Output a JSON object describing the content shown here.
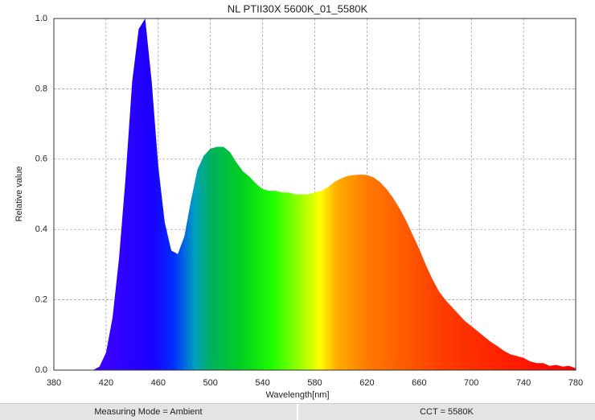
{
  "chart_data": {
    "type": "area",
    "title": "NL PTII30X 5600K_01_5580K",
    "x_label": "Wavelength[nm]",
    "y_label": "Relative value",
    "x": [
      380,
      385,
      390,
      395,
      400,
      405,
      410,
      415,
      420,
      425,
      430,
      435,
      440,
      445,
      450,
      455,
      460,
      465,
      470,
      475,
      480,
      485,
      490,
      495,
      500,
      505,
      510,
      515,
      520,
      525,
      530,
      535,
      540,
      545,
      550,
      555,
      560,
      565,
      570,
      575,
      580,
      585,
      590,
      595,
      600,
      605,
      610,
      615,
      620,
      625,
      630,
      635,
      640,
      645,
      650,
      655,
      660,
      665,
      670,
      675,
      680,
      685,
      690,
      695,
      700,
      705,
      710,
      715,
      720,
      725,
      730,
      735,
      740,
      745,
      750,
      755,
      760,
      765,
      770,
      775,
      780
    ],
    "values": [
      0,
      0,
      0,
      0,
      0,
      0,
      0,
      0.01,
      0.05,
      0.15,
      0.32,
      0.55,
      0.82,
      0.97,
      1.0,
      0.82,
      0.58,
      0.42,
      0.34,
      0.33,
      0.38,
      0.48,
      0.57,
      0.61,
      0.63,
      0.635,
      0.635,
      0.62,
      0.59,
      0.565,
      0.55,
      0.53,
      0.515,
      0.51,
      0.51,
      0.505,
      0.505,
      0.5,
      0.5,
      0.5,
      0.505,
      0.51,
      0.52,
      0.535,
      0.545,
      0.552,
      0.555,
      0.556,
      0.555,
      0.548,
      0.535,
      0.515,
      0.49,
      0.46,
      0.425,
      0.385,
      0.345,
      0.3,
      0.26,
      0.225,
      0.2,
      0.18,
      0.16,
      0.14,
      0.125,
      0.11,
      0.095,
      0.08,
      0.068,
      0.055,
      0.045,
      0.04,
      0.035,
      0.025,
      0.02,
      0.02,
      0.012,
      0.015,
      0.01,
      0.012,
      0.005
    ],
    "xlim": [
      380,
      780
    ],
    "xticks": [
      380,
      420,
      460,
      500,
      540,
      580,
      620,
      660,
      700,
      740,
      780
    ],
    "ylim": [
      0,
      1
    ],
    "yticks": [
      {
        "value": 0,
        "label": "0.0"
      },
      0.2,
      0.4,
      0.6,
      0.8,
      {
        "value": 1,
        "label": "1.0"
      }
    ],
    "grid": true
  },
  "footer": {
    "measuring_mode": "Measuring Mode = Ambient",
    "cct": "CCT = 5580K"
  }
}
